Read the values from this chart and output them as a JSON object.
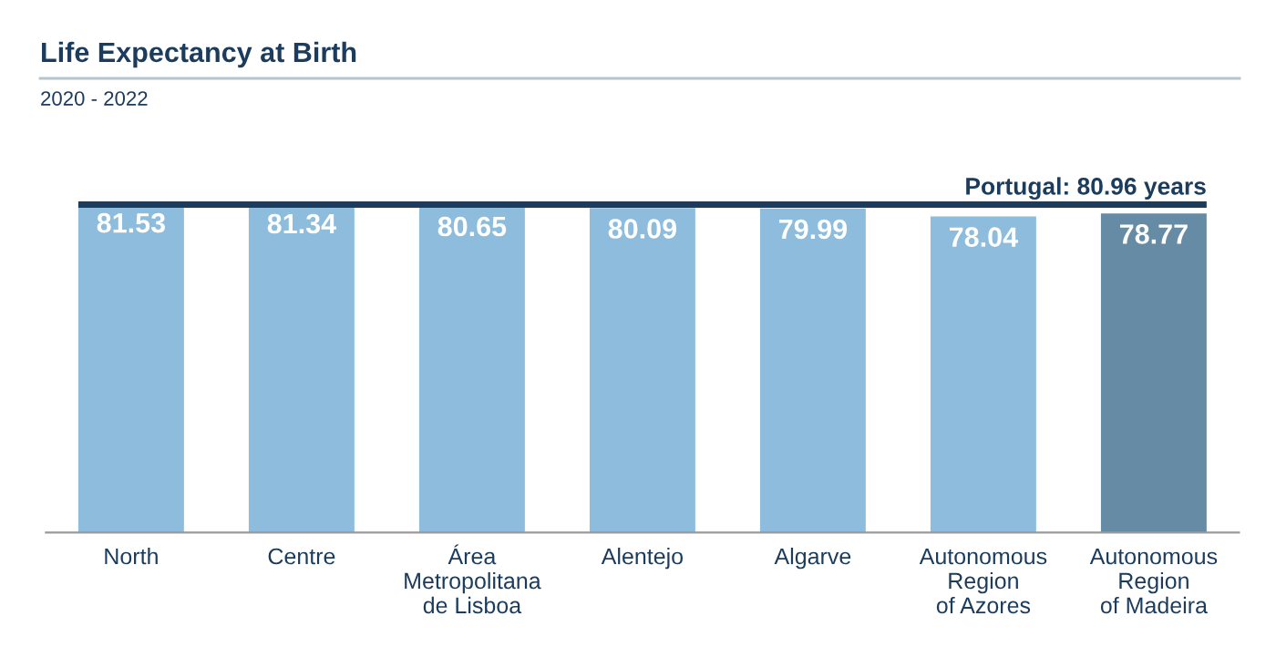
{
  "chart_data": {
    "type": "bar",
    "title": "Life Expectancy at Birth",
    "subtitle": "2020 - 2022",
    "categories": [
      "North",
      "Centre",
      "Área\nMetropolitana\nde Lisboa",
      "Alentejo",
      "Algarve",
      "Autonomous\nRegion\nof Azores",
      "Autonomous\nRegion\nof Madeira"
    ],
    "values": [
      81.53,
      81.34,
      80.65,
      80.09,
      79.99,
      78.04,
      78.77
    ],
    "colors": [
      "#8dbcdc",
      "#8dbcdc",
      "#8dbcdc",
      "#8dbcdc",
      "#8dbcdc",
      "#8dbcdc",
      "#668ba5"
    ],
    "ref_lines": [
      {
        "axis": "y",
        "value": 80.96,
        "label": "Portugal: 80.96 years",
        "color": "#1c3c5e"
      }
    ],
    "data_labels": true,
    "grid": false,
    "legend": false,
    "tick_labels": "x"
  }
}
